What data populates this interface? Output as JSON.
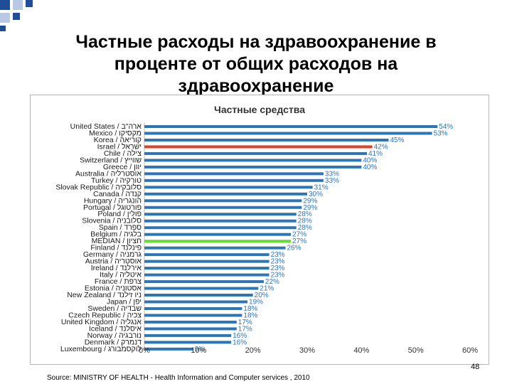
{
  "slide": {
    "title_line1": "Частные расходы на здравоохранение в",
    "title_line2": "проценте от общих расходов на",
    "title_line3": "здравоохранение",
    "source": "Source: MINISTRY OF HEALTH - Health Information and Computer services , 2010",
    "page_number": "48"
  },
  "colors": {
    "bar": "#2e75b6",
    "israel": "#d9442a",
    "oecd_mean": "#66dd33",
    "label": "#2e75b6",
    "deco_blue": "#1f4e96",
    "deco_light": "#b8c9e6"
  },
  "chart_data": {
    "type": "bar",
    "orientation": "horizontal",
    "title": "Частные средства",
    "xlim": [
      0,
      60
    ],
    "x_ticks": [
      "0%",
      "10%",
      "20%",
      "30%",
      "40%",
      "50%",
      "60%"
    ],
    "grid": false,
    "categories": [
      "United States / ארה\"ב",
      "Mexico / מקסיקו",
      "Korea / קוריאה",
      "Israel / ישראל",
      "Chile / צילה",
      "Switzerland / שווייץ",
      "Greece / יוון",
      "Australia / אוסטרליה",
      "Turkey / טורקיה",
      "Slovak Republic / סלובקיה",
      "Canada / קנדה",
      "Hungary / הונגריה",
      "Portugal / פורטוגל",
      "Poland / פולין",
      "Slovenia / סלובניה",
      "Spain / ספרד",
      "Belgium / בלגיה",
      "MEDIAN / חציון",
      "Finland / פינלנד",
      "Germany / גרמניה",
      "Austria / אוסטריה",
      "Ireland / אירלנד",
      "Italy / איטליה",
      "France / צרפת",
      "Estonia / אסטוניה",
      "New Zealand / ניו זילנד",
      "Japan / יפן",
      "Sweden / שבדיה",
      "Czech Republic / צכיה",
      "United Kingdom / אנגליה",
      "Iceland / איסלנד",
      "Norway / נורבגיה",
      "Denmark / דנמרק",
      "Luxembourg / לוקסמבורג"
    ],
    "values": [
      54,
      53,
      45,
      42,
      41,
      40,
      40,
      33,
      33,
      31,
      30,
      29,
      29,
      28,
      28,
      28,
      27,
      27,
      26,
      23,
      23,
      23,
      23,
      22,
      21,
      20,
      19,
      18,
      18,
      17,
      17,
      16,
      16,
      9
    ],
    "value_labels": [
      "54%",
      "53%",
      "45%",
      "42%",
      "41%",
      "40%",
      "40%",
      "33%",
      "33%",
      "31%",
      "30%",
      "29%",
      "29%",
      "28%",
      "28%",
      "28%",
      "27%",
      "27%",
      "26%",
      "23%",
      "23%",
      "23%",
      "23%",
      "22%",
      "21%",
      "20%",
      "19%",
      "18%",
      "18%",
      "17%",
      "17%",
      "16%",
      "16%",
      "9%"
    ],
    "highlight": {
      "Israel / ישראל": "israel",
      "MEDIAN / חציון": "oecd_mean"
    }
  }
}
